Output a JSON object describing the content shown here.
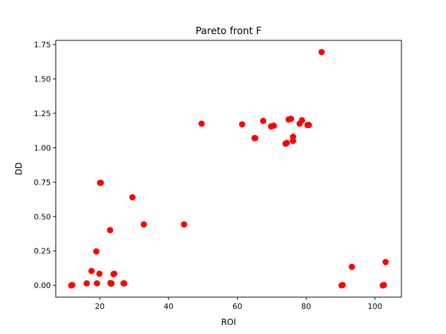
{
  "chart_data": {
    "type": "scatter",
    "title": "Pareto front F",
    "xlabel": "ROI",
    "ylabel": "DD",
    "xlim": [
      7.2,
      107.7
    ],
    "ylim": [
      -0.085,
      1.78
    ],
    "xticks": [
      20,
      40,
      60,
      80,
      100
    ],
    "xtick_labels": [
      "20",
      "40",
      "60",
      "80",
      "100"
    ],
    "yticks": [
      0.0,
      0.25,
      0.5,
      0.75,
      1.0,
      1.25,
      1.5,
      1.75
    ],
    "ytick_labels": [
      "0.00",
      "0.25",
      "0.50",
      "0.75",
      "1.00",
      "1.25",
      "1.50",
      "1.75"
    ],
    "grid": false,
    "series": [
      {
        "color": "#ff0000",
        "x": [
          11.7,
          12.0,
          16.2,
          17.6,
          19.2,
          19.0,
          19.9,
          20.1,
          20.3,
          23.1,
          23.3,
          23.0,
          23.4,
          24.2,
          24.0,
          26.9,
          27.1,
          29.5,
          32.8,
          44.5,
          49.6,
          61.4,
          65.0,
          65.2,
          67.5,
          69.8,
          70.6,
          74.0,
          74.4,
          74.9,
          75.6,
          76.2,
          76.2,
          78.1,
          78.8,
          80.4,
          80.8,
          84.5,
          90.3,
          90.6,
          93.3,
          102.3,
          102.6,
          103.1
        ],
        "y": [
          0.0,
          0.003,
          0.015,
          0.105,
          0.015,
          0.247,
          0.085,
          0.745,
          0.745,
          0.018,
          0.012,
          0.402,
          0.015,
          0.085,
          0.082,
          0.015,
          0.015,
          0.64,
          0.443,
          0.443,
          1.175,
          1.17,
          1.07,
          1.07,
          1.195,
          1.155,
          1.16,
          1.03,
          1.035,
          1.205,
          1.21,
          1.08,
          1.05,
          1.175,
          1.2,
          1.165,
          1.165,
          1.695,
          0.0,
          0.003,
          0.135,
          0.0,
          0.003,
          0.17
        ]
      }
    ]
  }
}
